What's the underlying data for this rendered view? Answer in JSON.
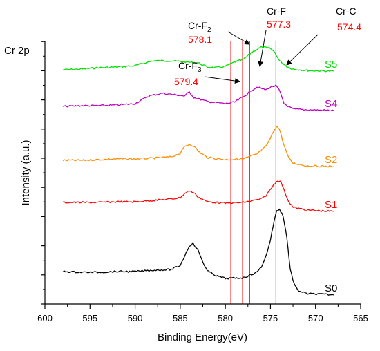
{
  "chart_data": {
    "type": "line",
    "panel_label": "Cr 2p",
    "xlabel": "Binding Energy(eV)",
    "ylabel": "Intensity (a.u.)",
    "xlim": [
      600,
      565
    ],
    "x_reversed": true,
    "x_ticks": [
      "600",
      "595",
      "590",
      "585",
      "580",
      "575",
      "570",
      "565"
    ],
    "y_tick_labels_shown": false,
    "grid": false,
    "series": [
      {
        "name": "S5",
        "color": "#00e000",
        "points": [
          [
            598,
            101
          ],
          [
            596,
            100
          ],
          [
            594,
            98
          ],
          [
            592,
            97
          ],
          [
            590,
            95
          ],
          [
            588,
            88
          ],
          [
            586,
            88
          ],
          [
            585,
            89
          ],
          [
            584,
            90
          ],
          [
            583,
            91
          ],
          [
            582,
            97
          ],
          [
            581,
            98
          ],
          [
            580,
            96
          ],
          [
            579,
            90
          ],
          [
            578,
            86
          ],
          [
            577,
            75
          ],
          [
            576,
            68
          ],
          [
            575,
            70
          ],
          [
            574.5,
            76
          ],
          [
            574,
            88
          ],
          [
            573.2,
            96
          ],
          [
            572.5,
            100
          ],
          [
            571,
            102
          ],
          [
            568,
            103
          ]
        ]
      },
      {
        "name": "S4",
        "color": "#c000c0",
        "points": [
          [
            598,
            154
          ],
          [
            596,
            153
          ],
          [
            594,
            153
          ],
          [
            592,
            152
          ],
          [
            590,
            150
          ],
          [
            588.5,
            139
          ],
          [
            587,
            135
          ],
          [
            585,
            138
          ],
          [
            584.5,
            139
          ],
          [
            584,
            133
          ],
          [
            583.5,
            141
          ],
          [
            582,
            147
          ],
          [
            580,
            150
          ],
          [
            579,
            148
          ],
          [
            578,
            140
          ],
          [
            577,
            130
          ],
          [
            576.5,
            126
          ],
          [
            575.5,
            130
          ],
          [
            575,
            126
          ],
          [
            574.4,
            124
          ],
          [
            574,
            131
          ],
          [
            573.5,
            150
          ],
          [
            572.5,
            158
          ],
          [
            571,
            159
          ],
          [
            568,
            160
          ]
        ]
      },
      {
        "name": "S2",
        "color": "#ff8c00",
        "points": [
          [
            598,
            232
          ],
          [
            596,
            232
          ],
          [
            594,
            231
          ],
          [
            592,
            230
          ],
          [
            590,
            230
          ],
          [
            588,
            229
          ],
          [
            586,
            227
          ],
          [
            585,
            222
          ],
          [
            584.5,
            212
          ],
          [
            584,
            209
          ],
          [
            583.5,
            211
          ],
          [
            583,
            219
          ],
          [
            582,
            228
          ],
          [
            580,
            231
          ],
          [
            578,
            230
          ],
          [
            576.5,
            223
          ],
          [
            575.5,
            212
          ],
          [
            575,
            200
          ],
          [
            574.5,
            186
          ],
          [
            574.3,
            183
          ],
          [
            574,
            187
          ],
          [
            573.5,
            210
          ],
          [
            573,
            228
          ],
          [
            572.5,
            236
          ],
          [
            571,
            240
          ],
          [
            568,
            241
          ]
        ]
      },
      {
        "name": "S1",
        "color": "#ff0000",
        "points": [
          [
            598,
            293
          ],
          [
            596,
            293
          ],
          [
            594,
            293
          ],
          [
            592,
            292
          ],
          [
            590,
            292
          ],
          [
            588,
            290
          ],
          [
            586,
            288
          ],
          [
            585,
            286
          ],
          [
            584.5,
            280
          ],
          [
            584,
            276
          ],
          [
            583.5,
            279
          ],
          [
            583,
            285
          ],
          [
            582,
            292
          ],
          [
            580,
            294
          ],
          [
            578,
            293
          ],
          [
            576,
            288
          ],
          [
            575.5,
            283
          ],
          [
            575,
            274
          ],
          [
            574.5,
            265
          ],
          [
            574.2,
            261
          ],
          [
            573.8,
            264
          ],
          [
            573.5,
            275
          ],
          [
            573,
            291
          ],
          [
            572.5,
            300
          ],
          [
            571,
            304
          ],
          [
            568,
            306
          ]
        ]
      },
      {
        "name": "S0",
        "color": "#000000",
        "points": [
          [
            598,
            393
          ],
          [
            596,
            394
          ],
          [
            594,
            394
          ],
          [
            592,
            393
          ],
          [
            590,
            393
          ],
          [
            588,
            391
          ],
          [
            586,
            390
          ],
          [
            585,
            384
          ],
          [
            584.5,
            370
          ],
          [
            584,
            356
          ],
          [
            583.6,
            352
          ],
          [
            583,
            363
          ],
          [
            582.5,
            379
          ],
          [
            582,
            392
          ],
          [
            581,
            399
          ],
          [
            580,
            403
          ],
          [
            578,
            402
          ],
          [
            576.5,
            394
          ],
          [
            576,
            386
          ],
          [
            575.5,
            371
          ],
          [
            575,
            347
          ],
          [
            574.6,
            320
          ],
          [
            574.3,
            305
          ],
          [
            574,
            303
          ],
          [
            573.6,
            312
          ],
          [
            573.2,
            342
          ],
          [
            572.8,
            390
          ],
          [
            572.4,
            410
          ],
          [
            572,
            420
          ],
          [
            571,
            425
          ],
          [
            569,
            426
          ],
          [
            568,
            427
          ]
        ]
      }
    ],
    "reference_lines": [
      {
        "x": 579.4,
        "color": "#ff0000"
      },
      {
        "x": 578.1,
        "color": "#ff0000"
      },
      {
        "x": 577.3,
        "color": "#ff0000"
      },
      {
        "x": 574.4,
        "color": "#ff0000"
      }
    ],
    "annotations": [
      {
        "name": "Cr-F",
        "sub": "2",
        "value": "578.1"
      },
      {
        "name": "Cr-F",
        "sub": "",
        "value": "577.3"
      },
      {
        "name": "Cr-C",
        "sub": "",
        "value": "574.4"
      },
      {
        "name": "Cr-F",
        "sub": "3",
        "value": "579.4"
      }
    ]
  }
}
